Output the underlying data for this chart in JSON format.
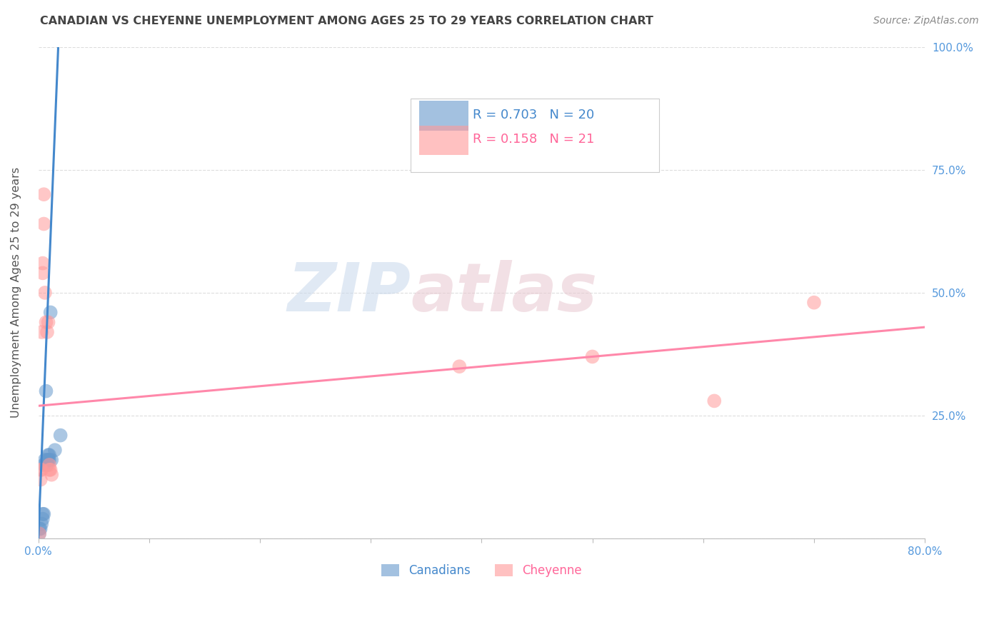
{
  "title": "CANADIAN VS CHEYENNE UNEMPLOYMENT AMONG AGES 25 TO 29 YEARS CORRELATION CHART",
  "source": "Source: ZipAtlas.com",
  "ylabel": "Unemployment Among Ages 25 to 29 years",
  "xlim": [
    0,
    0.8
  ],
  "ylim": [
    0,
    1.0
  ],
  "xticks": [
    0.0,
    0.1,
    0.2,
    0.3,
    0.4,
    0.5,
    0.6,
    0.7,
    0.8
  ],
  "xtick_labels": [
    "0.0%",
    "",
    "",
    "",
    "",
    "",
    "",
    "",
    "80.0%"
  ],
  "yticks": [
    0.0,
    0.25,
    0.5,
    0.75,
    1.0
  ],
  "ytick_labels_right": [
    "",
    "25.0%",
    "50.0%",
    "75.0%",
    "100.0%"
  ],
  "canadians_color": "#6699CC",
  "cheyenne_color": "#FF9999",
  "canadians_R": 0.703,
  "canadians_N": 20,
  "cheyenne_R": 0.158,
  "cheyenne_N": 21,
  "canadians_x": [
    0.001,
    0.001,
    0.002,
    0.003,
    0.004,
    0.004,
    0.005,
    0.005,
    0.006,
    0.007,
    0.008,
    0.008,
    0.009,
    0.009,
    0.01,
    0.01,
    0.011,
    0.012,
    0.015,
    0.02
  ],
  "canadians_y": [
    0.01,
    0.02,
    0.02,
    0.03,
    0.04,
    0.05,
    0.05,
    0.15,
    0.16,
    0.3,
    0.15,
    0.16,
    0.16,
    0.17,
    0.16,
    0.17,
    0.46,
    0.16,
    0.18,
    0.21
  ],
  "cheyenne_x": [
    0.001,
    0.002,
    0.002,
    0.003,
    0.003,
    0.004,
    0.004,
    0.005,
    0.005,
    0.006,
    0.007,
    0.008,
    0.009,
    0.01,
    0.01,
    0.011,
    0.012,
    0.38,
    0.5,
    0.61,
    0.7
  ],
  "cheyenne_y": [
    0.01,
    0.12,
    0.14,
    0.14,
    0.42,
    0.54,
    0.56,
    0.64,
    0.7,
    0.5,
    0.44,
    0.42,
    0.44,
    0.14,
    0.15,
    0.14,
    0.13,
    0.35,
    0.37,
    0.28,
    0.48
  ],
  "canadians_trendline_x": [
    0.0,
    0.018
  ],
  "canadians_trendline_y": [
    0.0,
    1.0
  ],
  "cheyenne_trendline_x": [
    0.0,
    0.8
  ],
  "cheyenne_trendline_y": [
    0.27,
    0.43
  ],
  "watermark_zip": "ZIP",
  "watermark_atlas": "atlas",
  "background_color": "#FFFFFF",
  "grid_color": "#DDDDDD",
  "title_color": "#444444",
  "axis_label_color": "#555555",
  "legend_text_color_blue": "#4488CC",
  "legend_text_color_pink": "#FF6699",
  "tick_label_color": "#5599DD"
}
